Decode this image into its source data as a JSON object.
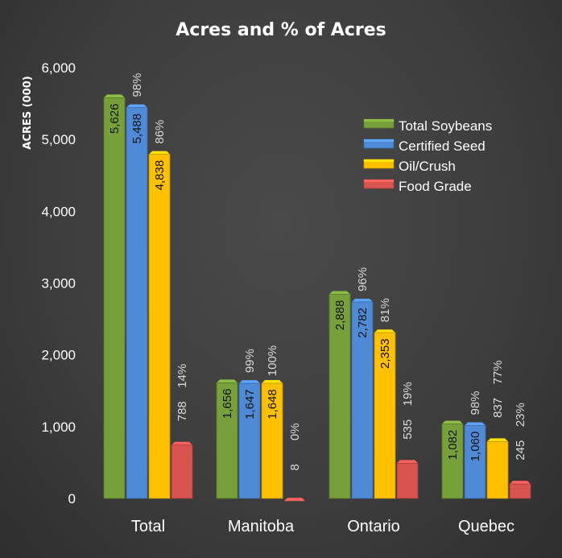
{
  "chart_data": {
    "type": "bar",
    "title": "Acres and % of Acres",
    "xlabel": "",
    "ylabel": "ACRES (000)",
    "ylim": [
      0,
      6000
    ],
    "y_ticks": [
      "0",
      "1,000",
      "2,000",
      "3,000",
      "4,000",
      "5,000",
      "6,000"
    ],
    "grid": false,
    "legend_position": "top-right",
    "categories": [
      "Total",
      "Manitoba",
      "Ontario",
      "Quebec"
    ],
    "series": [
      {
        "name": "Total Soybeans",
        "color": "#77a03a",
        "values": [
          5626,
          1656,
          2888,
          1082
        ],
        "value_labels": [
          "5,626",
          "1,656",
          "2,888",
          "1,082"
        ],
        "percent_labels": [
          "",
          "",
          "",
          ""
        ]
      },
      {
        "name": "Certified Seed",
        "color": "#4f8ad6",
        "values": [
          5488,
          1647,
          2782,
          1060
        ],
        "value_labels": [
          "5,488",
          "1,647",
          "2,782",
          "1,060"
        ],
        "percent_labels": [
          "98%",
          "99%",
          "96%",
          "98%"
        ]
      },
      {
        "name": "Oil/Crush",
        "color": "#ffc000",
        "values": [
          4838,
          1648,
          2353,
          837
        ],
        "value_labels": [
          "4,838",
          "1,648",
          "2,353",
          "837"
        ],
        "percent_labels": [
          "86%",
          "100%",
          "81%",
          "77%"
        ]
      },
      {
        "name": "Food Grade",
        "color": "#d9534f",
        "values": [
          788,
          8,
          535,
          245
        ],
        "value_labels": [
          "788",
          "8",
          "535",
          "245"
        ],
        "percent_labels": [
          "14%",
          "0%",
          "19%",
          "23%"
        ]
      }
    ]
  }
}
